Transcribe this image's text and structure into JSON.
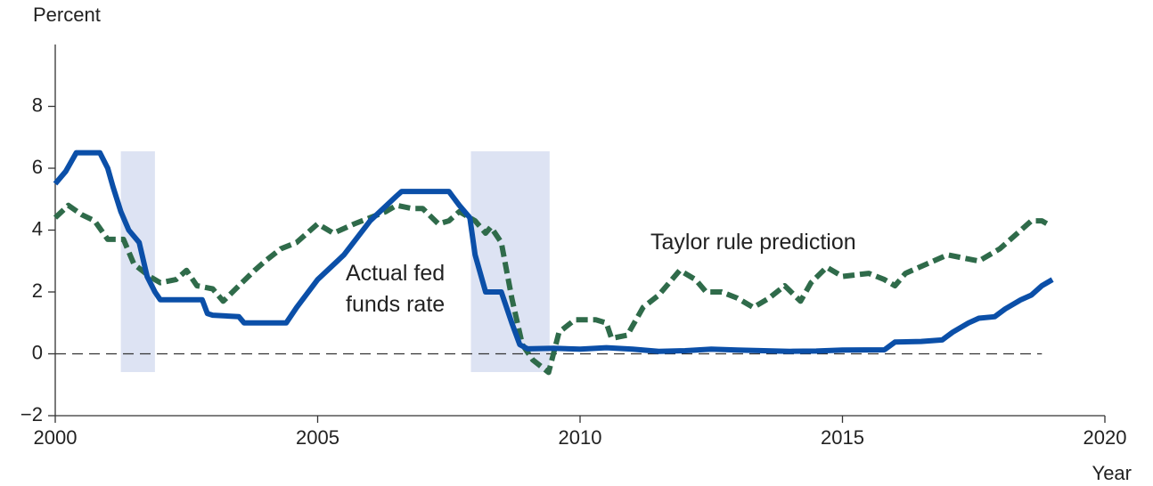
{
  "chart_data": {
    "type": "line",
    "ylabel": "Percent",
    "xlabel": "Year",
    "xlim": [
      2000,
      2020
    ],
    "xticks": [
      2000,
      2005,
      2010,
      2015,
      2020
    ],
    "ylim": [
      -2,
      10
    ],
    "yticks": [
      {
        "value": -2,
        "label": "−2"
      },
      0,
      2,
      4,
      6,
      8
    ],
    "reference_line": 0,
    "shaded_periods": [
      [
        2001.25,
        2001.9
      ],
      [
        2007.92,
        2009.42
      ]
    ],
    "shade_color": "#dde3f3",
    "series": [
      {
        "name": "Actual fed funds rate",
        "color": "#0b4fa8",
        "dashed": false,
        "x": [
          2000.0,
          2000.2,
          2000.4,
          2000.6,
          2000.85,
          2001.0,
          2001.1,
          2001.25,
          2001.4,
          2001.6,
          2001.75,
          2001.9,
          2002.0,
          2002.5,
          2002.8,
          2002.9,
          2003.0,
          2003.5,
          2003.6,
          2004.0,
          2004.4,
          2004.6,
          2005.0,
          2005.5,
          2006.0,
          2006.5,
          2006.6,
          2007.5,
          2007.7,
          2007.9,
          2008.0,
          2008.2,
          2008.5,
          2008.7,
          2008.85,
          2009.0,
          2009.5,
          2010.0,
          2010.5,
          2011.0,
          2011.5,
          2012.0,
          2012.5,
          2013.0,
          2013.5,
          2014.0,
          2014.5,
          2015.0,
          2015.8,
          2016.0,
          2016.5,
          2016.9,
          2017.1,
          2017.4,
          2017.6,
          2017.9,
          2018.1,
          2018.4,
          2018.6,
          2018.8,
          2019.0
        ],
        "values": [
          5.5,
          5.9,
          6.5,
          6.5,
          6.5,
          6.0,
          5.4,
          4.6,
          4.0,
          3.6,
          2.5,
          2.0,
          1.75,
          1.75,
          1.75,
          1.3,
          1.25,
          1.2,
          1.0,
          1.0,
          1.0,
          1.5,
          2.4,
          3.2,
          4.3,
          5.1,
          5.25,
          5.25,
          4.8,
          4.4,
          3.2,
          2.0,
          2.0,
          1.0,
          0.3,
          0.16,
          0.18,
          0.15,
          0.2,
          0.15,
          0.08,
          0.1,
          0.15,
          0.12,
          0.1,
          0.08,
          0.09,
          0.12,
          0.13,
          0.38,
          0.4,
          0.45,
          0.7,
          1.0,
          1.15,
          1.2,
          1.45,
          1.75,
          1.9,
          2.2,
          2.4
        ]
      },
      {
        "name": "Taylor rule prediction",
        "color": "#2f6b4a",
        "dashed": true,
        "x": [
          2000.0,
          2000.25,
          2000.5,
          2000.75,
          2001.0,
          2001.3,
          2001.5,
          2001.8,
          2002.0,
          2002.3,
          2002.5,
          2002.7,
          2003.0,
          2003.2,
          2003.5,
          2003.8,
          2004.0,
          2004.3,
          2004.6,
          2005.0,
          2005.3,
          2005.7,
          2006.0,
          2006.3,
          2006.5,
          2006.8,
          2007.0,
          2007.3,
          2007.5,
          2007.7,
          2008.0,
          2008.2,
          2008.3,
          2008.5,
          2008.7,
          2008.9,
          2009.1,
          2009.4,
          2009.6,
          2009.9,
          2010.3,
          2010.5,
          2010.6,
          2010.9,
          2011.2,
          2011.5,
          2011.9,
          2012.2,
          2012.4,
          2012.7,
          2013.0,
          2013.3,
          2013.6,
          2013.9,
          2014.2,
          2014.4,
          2014.7,
          2015.0,
          2015.5,
          2015.8,
          2016.0,
          2016.2,
          2016.6,
          2017.0,
          2017.3,
          2017.6,
          2018.0,
          2018.4,
          2018.6,
          2018.8,
          2018.9
        ],
        "values": [
          4.4,
          4.8,
          4.5,
          4.3,
          3.7,
          3.7,
          2.9,
          2.5,
          2.3,
          2.4,
          2.7,
          2.2,
          2.1,
          1.7,
          2.2,
          2.7,
          3.0,
          3.4,
          3.6,
          4.2,
          3.9,
          4.2,
          4.4,
          4.6,
          4.8,
          4.7,
          4.7,
          4.2,
          4.3,
          4.6,
          4.3,
          3.9,
          4.1,
          3.6,
          1.8,
          0.3,
          -0.2,
          -0.6,
          0.7,
          1.1,
          1.1,
          1.0,
          0.5,
          0.6,
          1.5,
          1.9,
          2.7,
          2.4,
          2.0,
          2.0,
          1.8,
          1.5,
          1.8,
          2.2,
          1.7,
          2.3,
          2.8,
          2.5,
          2.6,
          2.4,
          2.2,
          2.6,
          2.9,
          3.2,
          3.1,
          3.0,
          3.4,
          4.0,
          4.3,
          4.3,
          4.2
        ]
      }
    ]
  }
}
